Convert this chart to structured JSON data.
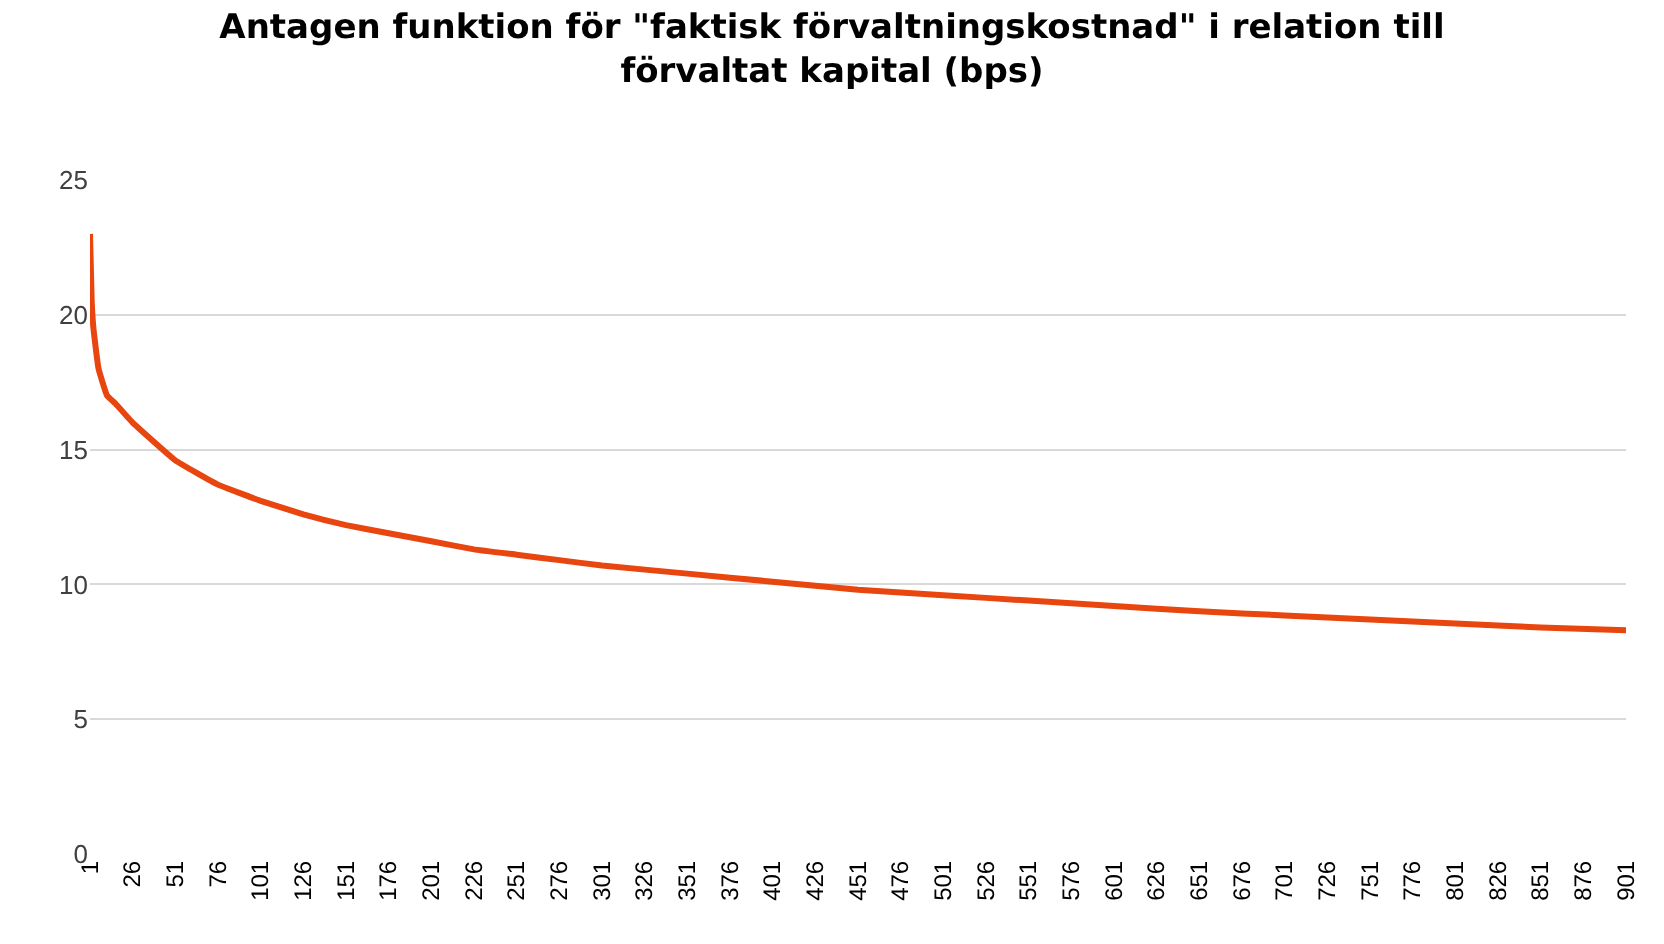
{
  "chart_data": {
    "type": "line",
    "title": "Antagen funktion för \"faktisk förvaltningskostnad\" i relation till förvaltat kapital (bps)",
    "x": [
      1,
      2,
      3,
      6,
      11,
      16,
      26,
      51,
      76,
      101,
      126,
      151,
      176,
      201,
      226,
      251,
      276,
      301,
      351,
      401,
      451,
      501,
      551,
      601,
      651,
      701,
      751,
      801,
      851,
      901
    ],
    "series": [
      {
        "color": "#e8450f",
        "values": [
          23,
          20.5,
          19.5,
          18,
          17,
          16.7,
          16,
          14.6,
          13.7,
          13.1,
          12.6,
          12.2,
          11.9,
          11.6,
          11.3,
          11.1,
          10.9,
          10.7,
          10.4,
          10.1,
          9.8,
          9.6,
          9.4,
          9.2,
          9.0,
          8.85,
          8.7,
          8.55,
          8.4,
          8.3
        ]
      }
    ],
    "xlim": [
      1,
      901
    ],
    "xticks": [
      1,
      26,
      51,
      76,
      101,
      126,
      151,
      176,
      201,
      226,
      251,
      276,
      301,
      326,
      351,
      376,
      401,
      426,
      451,
      476,
      501,
      526,
      551,
      576,
      601,
      626,
      651,
      676,
      701,
      726,
      751,
      776,
      801,
      826,
      851,
      876,
      901
    ],
    "ylim": [
      0,
      25
    ],
    "yticks": [
      0,
      5,
      10,
      15,
      20,
      25
    ],
    "grid": "y",
    "marker": "none",
    "line_style": "solid"
  }
}
